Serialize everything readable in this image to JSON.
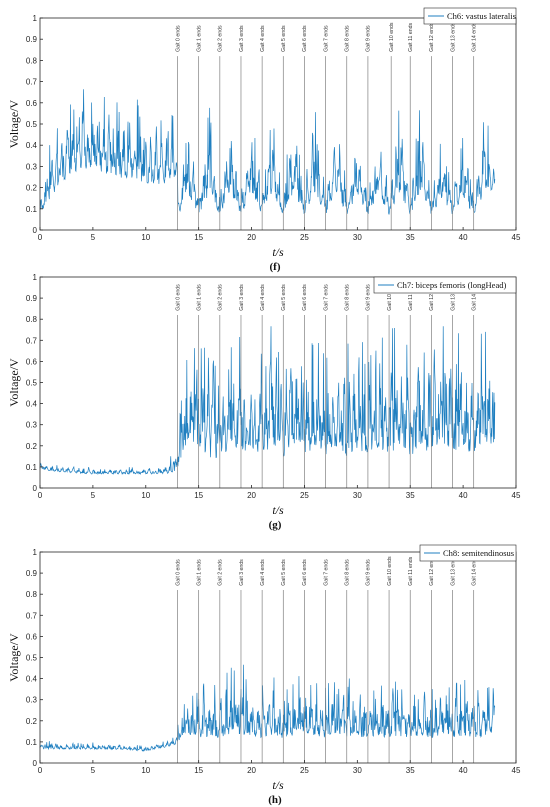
{
  "chart_data": [
    {
      "type": "line",
      "panel_label": "(f)",
      "legend": "Ch6: vastus lateralis",
      "xlabel": "t/s",
      "ylabel": "Voltage/V",
      "xlim": [
        0,
        45
      ],
      "ylim": [
        0,
        1
      ],
      "xticks": [
        0,
        5,
        10,
        15,
        20,
        25,
        30,
        35,
        40,
        45
      ],
      "yticks": [
        0,
        0.1,
        0.2,
        0.3,
        0.4,
        0.5,
        0.6,
        0.7,
        0.8,
        0.9,
        1
      ],
      "gait_markers": [
        {
          "x": 13.0,
          "label": "Gait 0 ends"
        },
        {
          "x": 15.0,
          "label": "Gait 1 ends"
        },
        {
          "x": 17.0,
          "label": "Gait 2 ends"
        },
        {
          "x": 19.0,
          "label": "Gait 3 ends"
        },
        {
          "x": 21.0,
          "label": "Gait 4 ends"
        },
        {
          "x": 23.0,
          "label": "Gait 5 ends"
        },
        {
          "x": 25.0,
          "label": "Gait 6 ends"
        },
        {
          "x": 27.0,
          "label": "Gait 7 ends"
        },
        {
          "x": 29.0,
          "label": "Gait 8 ends"
        },
        {
          "x": 31.0,
          "label": "Gait 9 ends"
        },
        {
          "x": 33.2,
          "label": "Gait 10 ends"
        },
        {
          "x": 35.0,
          "label": "Gait 11 ends"
        },
        {
          "x": 37.0,
          "label": "Gait 12 ends"
        },
        {
          "x": 39.0,
          "label": "Gait 13 ends"
        },
        {
          "x": 41.0,
          "label": "Gait 14 ends"
        }
      ],
      "series": [
        {
          "x_start": 0,
          "x_end": 43,
          "envelope": [
            [
              0,
              0.05,
              0.2
            ],
            [
              1,
              0.1,
              0.45
            ],
            [
              2,
              0.15,
              0.6
            ],
            [
              3,
              0.2,
              0.65
            ],
            [
              4,
              0.22,
              0.7
            ],
            [
              5,
              0.22,
              0.65
            ],
            [
              6,
              0.2,
              0.65
            ],
            [
              7,
              0.18,
              0.65
            ],
            [
              8,
              0.18,
              0.6
            ],
            [
              9,
              0.18,
              0.62
            ],
            [
              10,
              0.15,
              0.6
            ],
            [
              11,
              0.15,
              0.6
            ],
            [
              12,
              0.15,
              0.6
            ],
            [
              12.9,
              0.2,
              0.6
            ],
            [
              13.1,
              0.05,
              0.2
            ],
            [
              14,
              0.1,
              0.55
            ],
            [
              15,
              0.05,
              0.2
            ],
            [
              16,
              0.1,
              0.6
            ],
            [
              17,
              0.05,
              0.2
            ],
            [
              18,
              0.1,
              0.6
            ],
            [
              19,
              0.05,
              0.2
            ],
            [
              20,
              0.1,
              0.6
            ],
            [
              21,
              0.05,
              0.2
            ],
            [
              22,
              0.1,
              0.6
            ],
            [
              23,
              0.05,
              0.2
            ],
            [
              24,
              0.1,
              0.65
            ],
            [
              25,
              0.05,
              0.2
            ],
            [
              26,
              0.1,
              0.6
            ],
            [
              27,
              0.05,
              0.2
            ],
            [
              28,
              0.1,
              0.65
            ],
            [
              29,
              0.05,
              0.2
            ],
            [
              30,
              0.1,
              0.55
            ],
            [
              31,
              0.05,
              0.2
            ],
            [
              32,
              0.1,
              0.55
            ],
            [
              33,
              0.05,
              0.2
            ],
            [
              34,
              0.1,
              0.6
            ],
            [
              35,
              0.05,
              0.2
            ],
            [
              36,
              0.1,
              0.65
            ],
            [
              37,
              0.05,
              0.2
            ],
            [
              38,
              0.1,
              0.45
            ],
            [
              39,
              0.05,
              0.2
            ],
            [
              40,
              0.1,
              0.45
            ],
            [
              41,
              0.05,
              0.2
            ],
            [
              42,
              0.1,
              0.6
            ],
            [
              43,
              0.15,
              0.4
            ]
          ]
        }
      ]
    },
    {
      "type": "line",
      "panel_label": "(g)",
      "legend": "Ch7: biceps femoris (longHead)",
      "xlabel": "t/s",
      "ylabel": "Voltage/V",
      "xlim": [
        0,
        45
      ],
      "ylim": [
        0,
        1
      ],
      "xticks": [
        0,
        5,
        10,
        15,
        20,
        25,
        30,
        35,
        40,
        45
      ],
      "yticks": [
        0,
        0.1,
        0.2,
        0.3,
        0.4,
        0.5,
        0.6,
        0.7,
        0.8,
        0.9,
        1
      ],
      "gait_markers": [
        {
          "x": 13.0,
          "label": "Gait 0 ends"
        },
        {
          "x": 15.0,
          "label": "Gait 1 ends"
        },
        {
          "x": 17.0,
          "label": "Gait 2 ends"
        },
        {
          "x": 19.0,
          "label": "Gait 3 ends"
        },
        {
          "x": 21.0,
          "label": "Gait 4 ends"
        },
        {
          "x": 23.0,
          "label": "Gait 5 ends"
        },
        {
          "x": 25.0,
          "label": "Gait 6 ends"
        },
        {
          "x": 27.0,
          "label": "Gait 7 ends"
        },
        {
          "x": 29.0,
          "label": "Gait 8 ends"
        },
        {
          "x": 31.0,
          "label": "Gait 9 ends"
        },
        {
          "x": 33.0,
          "label": "Gait 10 ends"
        },
        {
          "x": 35.0,
          "label": "Gait 11 ends"
        },
        {
          "x": 37.0,
          "label": "Gait 12 ends"
        },
        {
          "x": 39.0,
          "label": "Gait 13 ends"
        },
        {
          "x": 41.0,
          "label": "Gait 14 ends"
        }
      ],
      "series": [
        {
          "x_start": 0,
          "x_end": 43,
          "envelope": [
            [
              0,
              0.08,
              0.13
            ],
            [
              2,
              0.07,
              0.11
            ],
            [
              5,
              0.06,
              0.1
            ],
            [
              8,
              0.06,
              0.1
            ],
            [
              10,
              0.06,
              0.1
            ],
            [
              12,
              0.06,
              0.12
            ],
            [
              12.9,
              0.06,
              0.2
            ],
            [
              13.5,
              0.1,
              0.55
            ],
            [
              14,
              0.15,
              0.7
            ],
            [
              15,
              0.1,
              0.75
            ],
            [
              16,
              0.05,
              0.7
            ],
            [
              17,
              0.05,
              0.6
            ],
            [
              18,
              0.1,
              0.75
            ],
            [
              19,
              0.05,
              0.8
            ],
            [
              20,
              0.1,
              0.7
            ],
            [
              21,
              0.05,
              0.75
            ],
            [
              22,
              0.1,
              0.8
            ],
            [
              23,
              0.05,
              0.7
            ],
            [
              24,
              0.1,
              0.85
            ],
            [
              25,
              0.05,
              0.75
            ],
            [
              26,
              0.1,
              0.7
            ],
            [
              27,
              0.05,
              0.7
            ],
            [
              28,
              0.1,
              0.75
            ],
            [
              29,
              0.05,
              0.7
            ],
            [
              30,
              0.1,
              0.7
            ],
            [
              31,
              0.05,
              0.75
            ],
            [
              32,
              0.1,
              0.7
            ],
            [
              33,
              0.05,
              0.8
            ],
            [
              34,
              0.1,
              0.75
            ],
            [
              35,
              0.05,
              0.7
            ],
            [
              36,
              0.1,
              0.75
            ],
            [
              37,
              0.05,
              0.8
            ],
            [
              38,
              0.1,
              0.8
            ],
            [
              39,
              0.05,
              0.85
            ],
            [
              40,
              0.1,
              0.75
            ],
            [
              41,
              0.05,
              0.7
            ],
            [
              42,
              0.1,
              0.75
            ],
            [
              43,
              0.1,
              0.75
            ]
          ]
        }
      ]
    },
    {
      "type": "line",
      "panel_label": "(h)",
      "legend": "Ch8: semitendinosus",
      "xlabel": "t/s",
      "ylabel": "Voltage/V",
      "xlim": [
        0,
        45
      ],
      "ylim": [
        0,
        1
      ],
      "xticks": [
        0,
        5,
        10,
        15,
        20,
        25,
        30,
        35,
        40,
        45
      ],
      "yticks": [
        0,
        0.1,
        0.2,
        0.3,
        0.4,
        0.5,
        0.6,
        0.7,
        0.8,
        0.9,
        1
      ],
      "gait_markers": [
        {
          "x": 13.0,
          "label": "Gait 0 ends"
        },
        {
          "x": 15.0,
          "label": "Gait 1 ends"
        },
        {
          "x": 17.0,
          "label": "Gait 2 ends"
        },
        {
          "x": 19.0,
          "label": "Gait 3 ends"
        },
        {
          "x": 21.0,
          "label": "Gait 4 ends"
        },
        {
          "x": 23.0,
          "label": "Gait 5 ends"
        },
        {
          "x": 25.0,
          "label": "Gait 6 ends"
        },
        {
          "x": 27.0,
          "label": "Gait 7 ends"
        },
        {
          "x": 29.0,
          "label": "Gait 8 ends"
        },
        {
          "x": 31.0,
          "label": "Gait 9 ends"
        },
        {
          "x": 33.0,
          "label": "Gait 10 ends"
        },
        {
          "x": 35.0,
          "label": "Gait 11 ends"
        },
        {
          "x": 37.0,
          "label": "Gait 12 ends"
        },
        {
          "x": 39.0,
          "label": "Gait 13 ends"
        },
        {
          "x": 41.0,
          "label": "Gait 14 ends"
        }
      ],
      "series": [
        {
          "x_start": 0,
          "x_end": 43,
          "envelope": [
            [
              0,
              0.06,
              0.11
            ],
            [
              2,
              0.06,
              0.1
            ],
            [
              5,
              0.06,
              0.1
            ],
            [
              8,
              0.06,
              0.09
            ],
            [
              10,
              0.05,
              0.09
            ],
            [
              12,
              0.07,
              0.11
            ],
            [
              12.9,
              0.08,
              0.15
            ],
            [
              13.5,
              0.1,
              0.3
            ],
            [
              14,
              0.1,
              0.35
            ],
            [
              15,
              0.07,
              0.4
            ],
            [
              16,
              0.08,
              0.38
            ],
            [
              17,
              0.07,
              0.4
            ],
            [
              18,
              0.08,
              0.45
            ],
            [
              19,
              0.07,
              0.5
            ],
            [
              20,
              0.08,
              0.42
            ],
            [
              21,
              0.07,
              0.4
            ],
            [
              22,
              0.08,
              0.45
            ],
            [
              23,
              0.07,
              0.38
            ],
            [
              24,
              0.08,
              0.4
            ],
            [
              25,
              0.07,
              0.45
            ],
            [
              26,
              0.08,
              0.42
            ],
            [
              27,
              0.07,
              0.38
            ],
            [
              28,
              0.08,
              0.4
            ],
            [
              29,
              0.07,
              0.42
            ],
            [
              30,
              0.08,
              0.38
            ],
            [
              31,
              0.07,
              0.4
            ],
            [
              32,
              0.08,
              0.38
            ],
            [
              33,
              0.07,
              0.42
            ],
            [
              34,
              0.08,
              0.4
            ],
            [
              35,
              0.07,
              0.38
            ],
            [
              36,
              0.08,
              0.42
            ],
            [
              37,
              0.07,
              0.38
            ],
            [
              38,
              0.08,
              0.45
            ],
            [
              39,
              0.07,
              0.4
            ],
            [
              40,
              0.08,
              0.4
            ],
            [
              41,
              0.07,
              0.38
            ],
            [
              42,
              0.08,
              0.4
            ],
            [
              43,
              0.1,
              0.42
            ]
          ]
        }
      ]
    }
  ],
  "style": {
    "line_color": "#1f7fc0",
    "axis_color": "#262626",
    "marker_color": "#808080"
  }
}
